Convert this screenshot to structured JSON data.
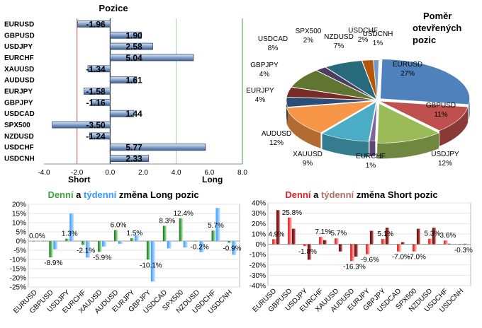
{
  "chart_data": [
    {
      "type": "bar",
      "orientation": "horizontal",
      "title": "Pozice",
      "categories": [
        "EURUSD",
        "GBPUSD",
        "USDJPY",
        "EURCHF",
        "XAUUSD",
        "AUDUSD",
        "EURJPY",
        "GBPJPY",
        "USDCAD",
        "SPX500",
        "NZDUSD",
        "USDCHF",
        "USDCNH"
      ],
      "values": [
        -1.96,
        1.9,
        2.58,
        5.04,
        -1.34,
        1.61,
        -1.58,
        -1.16,
        1.44,
        -3.5,
        -1.24,
        5.77,
        2.33
      ],
      "value_labels": [
        "-1.96",
        "1.90",
        "2.58",
        "5.04",
        "-1.34",
        "1.61",
        "-1.58",
        "-1.16",
        "1.44",
        "-3.50",
        "-1.24",
        "5.77",
        "2.33"
      ],
      "xlim": [
        -4.0,
        8.0
      ],
      "xticks": [
        "-4.0",
        "-2.0",
        "0.0",
        "2.0",
        "4.0",
        "6.0",
        "8.0"
      ],
      "annotations": {
        "short": "Short",
        "long": "Long"
      },
      "reference_lines": [
        -2.0,
        4.0,
        8.0
      ]
    },
    {
      "type": "pie",
      "title_lines": [
        "Poměr",
        "otevřených",
        "pozic"
      ],
      "slices": [
        {
          "label": "EURUSD",
          "value": 27,
          "pct": "27%",
          "color": "#4f81bd"
        },
        {
          "label": "GBPUSD",
          "value": 11,
          "pct": "11%",
          "color": "#c0504d"
        },
        {
          "label": "USDJPY",
          "value": 12,
          "pct": "12%",
          "color": "#9bbb59"
        },
        {
          "label": "EURCHF",
          "value": 1,
          "pct": "1%",
          "color": "#8064a2"
        },
        {
          "label": "XAUUSD",
          "value": 9,
          "pct": "9%",
          "color": "#4bacc6"
        },
        {
          "label": "AUDUSD",
          "value": 12,
          "pct": "12%",
          "color": "#f79646"
        },
        {
          "label": "EURJPY",
          "value": 4,
          "pct": "4%",
          "color": "#2c4d75"
        },
        {
          "label": "GBPJPY",
          "value": 4,
          "pct": "4%",
          "color": "#772c2a"
        },
        {
          "label": "USDCAD",
          "value": 8,
          "pct": "8%",
          "color": "#5f7530"
        },
        {
          "label": "SPX500",
          "value": 2,
          "pct": "2%",
          "color": "#4d3b62"
        },
        {
          "label": "NZDUSD",
          "value": 7,
          "pct": "7%",
          "color": "#276a7c"
        },
        {
          "label": "USDCHF",
          "value": 2,
          "pct": "2%",
          "color": "#b65708"
        },
        {
          "label": "USDCNH",
          "value": 1,
          "pct": "1%",
          "color": "#729aca"
        }
      ]
    },
    {
      "type": "bar",
      "title_parts": [
        {
          "text": "Denní",
          "color": "#3aa63a"
        },
        {
          "text": " a ",
          "color": "#000000"
        },
        {
          "text": "týdenní",
          "color": "#3399ff"
        },
        {
          "text": " změna Long pozic",
          "color": "#000000"
        }
      ],
      "categories": [
        "EURUSD",
        "GBPUSD",
        "USDJPY",
        "EURCHF",
        "XAUUSD",
        "AUDUSD",
        "EURJPY",
        "GBPJPY",
        "USDCAD",
        "SPX500",
        "NZDUSD",
        "USDCHF",
        "USDCNH"
      ],
      "series": [
        {
          "name": "Denní",
          "color": "#3aa63a",
          "values": [
            0.0,
            -8.9,
            1.3,
            -2.1,
            -5.9,
            6.0,
            1.5,
            -10.1,
            8.3,
            12.4,
            -0.2,
            5.7,
            -0.9
          ]
        },
        {
          "name": "týdenní",
          "color": "#66b3ff",
          "values": [
            0.0,
            -4.5,
            15.0,
            -9.0,
            -3.0,
            -1.5,
            3.0,
            -22.0,
            -4.0,
            -3.5,
            -6.0,
            18.0,
            -7.5
          ]
        }
      ],
      "value_labels": [
        "0.0%",
        "-8.9%",
        "1.3%",
        "-2.1%",
        "-5.9%",
        "6.0%",
        "1.5%",
        "-10.1%",
        "8.3%",
        "12.4%",
        "-0.2%",
        "5.7%",
        "-0.9%"
      ],
      "ylim": [
        -25,
        20
      ],
      "yticks": [
        "20%",
        "15%",
        "10%",
        "5%",
        "0%",
        "-5%",
        "-10%",
        "-15%",
        "-20%",
        "-25%"
      ]
    },
    {
      "type": "bar",
      "title_parts": [
        {
          "text": "Denní",
          "color": "#e02020"
        },
        {
          "text": " a ",
          "color": "#000000"
        },
        {
          "text": "týdenní",
          "color": "#b07060"
        },
        {
          "text": " změna Short pozic",
          "color": "#000000"
        }
      ],
      "categories": [
        "EURUSD",
        "GBPUSD",
        "USDJPY",
        "EURCHF",
        "XAUUSD",
        "AUDUSD",
        "EURJPY",
        "GBPJPY",
        "USDCAD",
        "SPX500",
        "NZDUSD",
        "USDCHF",
        "USDCNH"
      ],
      "series": [
        {
          "name": "Denní",
          "color": "#e02020",
          "values": [
            4.9,
            25.8,
            -1.8,
            7.1,
            5.7,
            -16.3,
            -9.6,
            5.1,
            -7.0,
            -7.0,
            5.3,
            3.6,
            -0.3
          ]
        },
        {
          "name": "týdenní",
          "color": "#8b2020",
          "values": [
            33.0,
            15.0,
            -15.0,
            4.0,
            -7.0,
            -12.0,
            13.0,
            16.0,
            2.0,
            15.0,
            16.0,
            0.5,
            0.5
          ]
        }
      ],
      "value_labels": [
        "4.9%",
        "25.8%",
        "-1.8%",
        "7.1%",
        "5.7%",
        "-16.3%",
        "-9.6%",
        "5.1%",
        "-7.0%",
        "-7.0%",
        "5.3%",
        "3.6%",
        "-0.3%"
      ],
      "ylim": [
        -40,
        40
      ],
      "yticks": [
        "40%",
        "30%",
        "20%",
        "10%",
        "0%",
        "-10%",
        "-20%",
        "-30%",
        "-40%"
      ]
    }
  ]
}
